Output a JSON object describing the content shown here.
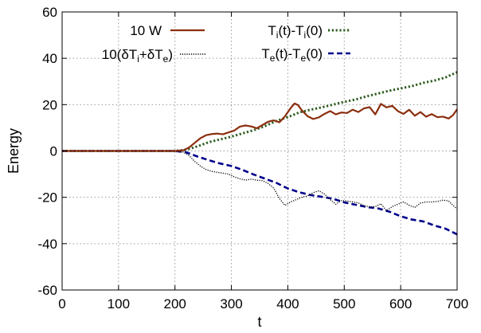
{
  "chart_data": {
    "type": "line",
    "title": "",
    "xlabel": "t",
    "ylabel": "Energy",
    "xlim": [
      0,
      700
    ],
    "ylim": [
      -60,
      60
    ],
    "xticks": [
      0,
      100,
      200,
      300,
      400,
      500,
      600,
      700
    ],
    "yticks": [
      -60,
      -40,
      -20,
      0,
      20,
      40,
      60
    ],
    "grid": true,
    "legend_position": "top",
    "series": [
      {
        "name": "10 W",
        "color": "#8b2e0e",
        "dash": "solid",
        "x": [
          0,
          200,
          215,
          225,
          235,
          245,
          255,
          265,
          275,
          285,
          295,
          305,
          315,
          325,
          335,
          345,
          355,
          365,
          375,
          385,
          395,
          405,
          412,
          418,
          425,
          435,
          445,
          455,
          465,
          475,
          485,
          495,
          505,
          515,
          525,
          535,
          545,
          555,
          565,
          575,
          585,
          595,
          605,
          615,
          625,
          635,
          645,
          655,
          665,
          675,
          685,
          693,
          700
        ],
        "y": [
          0,
          0,
          0.3,
          1.5,
          3.5,
          5.5,
          6.8,
          7.3,
          7.5,
          7.2,
          8.0,
          8.8,
          10.5,
          11.0,
          10.6,
          9.8,
          11.2,
          12.6,
          13.2,
          12.4,
          15.0,
          18.5,
          20.5,
          19.8,
          17.5,
          15.0,
          13.8,
          14.5,
          16.0,
          17.2,
          15.8,
          16.6,
          16.4,
          17.8,
          16.8,
          18.4,
          18.9,
          15.8,
          20.3,
          18.8,
          19.5,
          17.2,
          16.0,
          17.8,
          15.2,
          16.8,
          14.8,
          15.9,
          14.6,
          14.8,
          14.0,
          15.5,
          18.0
        ]
      },
      {
        "name": "10(δT_i+δT_e)",
        "color": "#000000",
        "dash": "dotted-fine",
        "x": [
          0,
          200,
          215,
          225,
          235,
          245,
          255,
          265,
          275,
          285,
          295,
          305,
          315,
          325,
          335,
          345,
          355,
          365,
          375,
          385,
          395,
          405,
          415,
          425,
          435,
          445,
          455,
          465,
          475,
          485,
          495,
          505,
          515,
          525,
          535,
          545,
          555,
          565,
          575,
          585,
          595,
          605,
          615,
          625,
          635,
          645,
          655,
          665,
          675,
          685,
          695,
          700
        ],
        "y": [
          0,
          0,
          -0.5,
          -2.0,
          -4.5,
          -6.5,
          -8.0,
          -8.8,
          -9.2,
          -9.6,
          -10.0,
          -11.2,
          -12.0,
          -12.6,
          -12.2,
          -12.6,
          -12.8,
          -14.0,
          -16.0,
          -20.5,
          -23.5,
          -22.0,
          -21.0,
          -20.0,
          -19.4,
          -18.0,
          -17.2,
          -18.6,
          -21.0,
          -23.0,
          -21.4,
          -21.6,
          -22.0,
          -22.4,
          -23.6,
          -24.2,
          -24.0,
          -22.8,
          -25.8,
          -24.0,
          -23.0,
          -22.0,
          -23.4,
          -24.4,
          -22.5,
          -22.0,
          -22.0,
          -21.8,
          -21.2,
          -21.6,
          -24.0,
          -25.0
        ]
      },
      {
        "name": "T_i(t)-T_i(0)",
        "color": "#2e5c1e",
        "dash": "dotted-thick",
        "x": [
          0,
          200,
          220,
          240,
          260,
          280,
          300,
          320,
          340,
          360,
          380,
          400,
          420,
          440,
          460,
          480,
          500,
          520,
          540,
          560,
          580,
          600,
          620,
          640,
          660,
          680,
          700
        ],
        "y": [
          0,
          0,
          0.5,
          2.0,
          3.8,
          5.0,
          6.2,
          7.6,
          9.0,
          10.8,
          13.0,
          14.6,
          16.6,
          17.8,
          18.8,
          20.0,
          21.2,
          22.2,
          23.6,
          24.8,
          26.0,
          27.0,
          28.0,
          29.4,
          30.4,
          31.8,
          34.0
        ]
      },
      {
        "name": "T_e(t)-T_e(0)",
        "color": "#00008b",
        "dash": "dashed",
        "x": [
          0,
          200,
          220,
          240,
          260,
          280,
          300,
          320,
          340,
          360,
          380,
          400,
          420,
          440,
          460,
          480,
          500,
          520,
          540,
          560,
          580,
          600,
          620,
          640,
          660,
          680,
          700
        ],
        "y": [
          0,
          0,
          -0.6,
          -2.4,
          -4.0,
          -5.4,
          -6.5,
          -8.2,
          -10.2,
          -12.0,
          -13.8,
          -16.2,
          -17.8,
          -19.0,
          -19.8,
          -20.6,
          -22.2,
          -23.2,
          -24.2,
          -24.8,
          -26.2,
          -28.2,
          -29.6,
          -30.4,
          -32.2,
          -33.6,
          -36.0
        ]
      }
    ]
  }
}
